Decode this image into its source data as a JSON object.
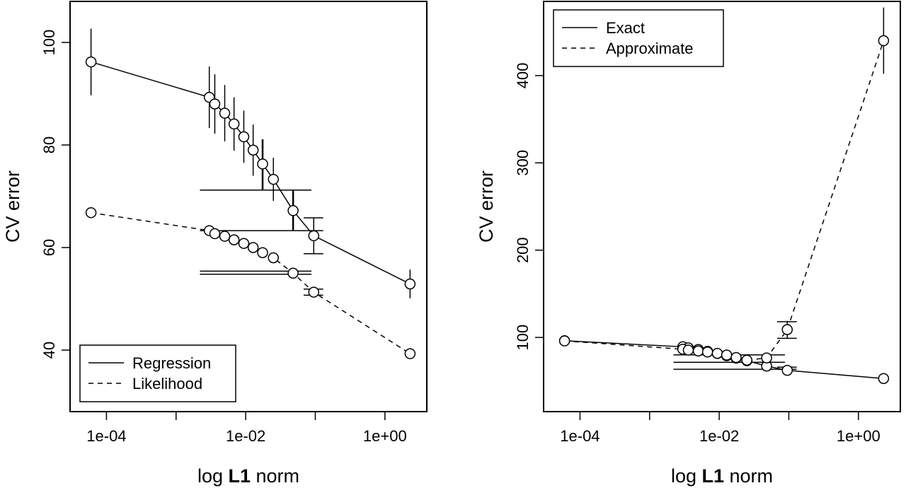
{
  "chart_data": [
    {
      "type": "line",
      "xscale": "log",
      "xlabel_prefix": "log ",
      "xlabel_bold": "L1",
      "xlabel_suffix": " norm",
      "ylabel": "CV error",
      "xlim": [
        3e-05,
        4.0
      ],
      "ylim": [
        28,
        108
      ],
      "xticks": [
        {
          "value": 0.0001,
          "label": "1e-04"
        },
        {
          "value": 0.01,
          "label": "1e-02"
        },
        {
          "value": 1,
          "label": "1e+00"
        }
      ],
      "xminor": [
        0.001,
        0.1
      ],
      "yticks": [
        40,
        60,
        80,
        100
      ],
      "legend": {
        "position": "bottom-left"
      },
      "series": [
        {
          "name": "Regression",
          "dash": "solid",
          "points": [
            {
              "x": 6e-05,
              "y": 96.2,
              "err": 6.5
            },
            {
              "x": 0.003,
              "y": 89.3,
              "err": 6.0
            },
            {
              "x": 0.0036,
              "y": 88.0,
              "err": 5.8
            },
            {
              "x": 0.005,
              "y": 86.2,
              "err": 5.5
            },
            {
              "x": 0.0068,
              "y": 84.1,
              "err": 5.2
            },
            {
              "x": 0.0094,
              "y": 81.6,
              "err": 5.1
            },
            {
              "x": 0.0128,
              "y": 79.0,
              "err": 5.0
            },
            {
              "x": 0.0175,
              "y": 76.3,
              "err": 4.8
            },
            {
              "x": 0.025,
              "y": 73.3,
              "err": 4.2
            },
            {
              "x": 0.048,
              "y": 67.2,
              "err": 4.0
            },
            {
              "x": 0.095,
              "y": 62.3,
              "err": 3.5
            },
            {
              "x": 2.3,
              "y": 52.9,
              "err": 2.8
            }
          ]
        },
        {
          "name": "Likelihood",
          "dash": "dashed",
          "points": [
            {
              "x": 6e-05,
              "y": 66.8,
              "err": 0.6
            },
            {
              "x": 0.003,
              "y": 63.3,
              "err": 0.6
            },
            {
              "x": 0.0036,
              "y": 62.7,
              "err": 0.6
            },
            {
              "x": 0.005,
              "y": 62.2,
              "err": 0.6
            },
            {
              "x": 0.0068,
              "y": 61.5,
              "err": 0.6
            },
            {
              "x": 0.0094,
              "y": 60.8,
              "err": 0.6
            },
            {
              "x": 0.0128,
              "y": 60.0,
              "err": 0.6
            },
            {
              "x": 0.0175,
              "y": 59.0,
              "err": 0.6
            },
            {
              "x": 0.025,
              "y": 58.0,
              "err": 0.6
            },
            {
              "x": 0.048,
              "y": 55.0,
              "err": 0.6
            },
            {
              "x": 0.095,
              "y": 51.3,
              "err": 0.6
            },
            {
              "x": 2.3,
              "y": 39.3,
              "err": 0.6
            }
          ]
        }
      ],
      "hlines": [
        {
          "y": 71.2,
          "x0": 0.0022,
          "x1": 0.088
        },
        {
          "y": 63.3,
          "x0": 0.0022,
          "x1": 0.13
        },
        {
          "y": 65.8,
          "x0": 0.068,
          "x1": 0.13
        },
        {
          "y": 58.8,
          "x0": 0.068,
          "x1": 0.13
        },
        {
          "y": 55.4,
          "x0": 0.0022,
          "x1": 0.088
        },
        {
          "y": 54.8,
          "x0": 0.0022,
          "x1": 0.088
        },
        {
          "y": 51.9,
          "x0": 0.068,
          "x1": 0.13
        },
        {
          "y": 50.7,
          "x0": 0.068,
          "x1": 0.13
        }
      ],
      "vlines": [
        {
          "x": 0.048,
          "y0": 63.3,
          "y1": 71.2
        },
        {
          "x": 0.0175,
          "y0": 71.2,
          "y1": 81.1
        }
      ]
    },
    {
      "type": "line",
      "xscale": "log",
      "xlabel_prefix": "log ",
      "xlabel_bold": "L1",
      "xlabel_suffix": " norm",
      "ylabel": "CV error",
      "xlim": [
        3e-05,
        4.0
      ],
      "ylim": [
        15,
        485
      ],
      "xticks": [
        {
          "value": 0.0001,
          "label": "1e-04"
        },
        {
          "value": 0.01,
          "label": "1e-02"
        },
        {
          "value": 1,
          "label": "1e+00"
        }
      ],
      "xminor": [
        0.001,
        0.1
      ],
      "yticks": [
        100,
        200,
        300,
        400
      ],
      "legend": {
        "position": "top-left"
      },
      "series": [
        {
          "name": "Exact",
          "dash": "solid",
          "points": [
            {
              "x": 6e-05,
              "y": 96.2,
              "err": 5
            },
            {
              "x": 0.003,
              "y": 89.3,
              "err": 5
            },
            {
              "x": 0.0036,
              "y": 88.0,
              "err": 5
            },
            {
              "x": 0.005,
              "y": 86.2,
              "err": 5
            },
            {
              "x": 0.0068,
              "y": 84.1,
              "err": 5
            },
            {
              "x": 0.0094,
              "y": 81.6,
              "err": 5
            },
            {
              "x": 0.0128,
              "y": 79.0,
              "err": 5
            },
            {
              "x": 0.0175,
              "y": 76.3,
              "err": 5
            },
            {
              "x": 0.025,
              "y": 73.3,
              "err": 5
            },
            {
              "x": 0.048,
              "y": 67.2,
              "err": 5
            },
            {
              "x": 0.095,
              "y": 62.3,
              "err": 4
            },
            {
              "x": 2.3,
              "y": 52.9,
              "err": 3
            }
          ]
        },
        {
          "name": "Approximate",
          "dash": "dashed",
          "points": [
            {
              "x": 6e-05,
              "y": 96.0,
              "err": 4
            },
            {
              "x": 0.003,
              "y": 86.5,
              "err": 5
            },
            {
              "x": 0.0036,
              "y": 85.5,
              "err": 5
            },
            {
              "x": 0.005,
              "y": 84.5,
              "err": 5
            },
            {
              "x": 0.0068,
              "y": 83.3,
              "err": 5
            },
            {
              "x": 0.0094,
              "y": 81.8,
              "err": 5
            },
            {
              "x": 0.0128,
              "y": 79.8,
              "err": 5
            },
            {
              "x": 0.0175,
              "y": 77.0,
              "err": 5
            },
            {
              "x": 0.025,
              "y": 74.0,
              "err": 5
            },
            {
              "x": 0.048,
              "y": 76.5,
              "err": 5
            },
            {
              "x": 0.095,
              "y": 109.0,
              "err": 10
            },
            {
              "x": 2.3,
              "y": 440.0,
              "err": 38
            }
          ]
        }
      ],
      "hlines": [
        {
          "y": 80.0,
          "x0": 0.0022,
          "x1": 0.088
        },
        {
          "y": 71.5,
          "x0": 0.0022,
          "x1": 0.088
        },
        {
          "y": 63.5,
          "x0": 0.0022,
          "x1": 0.13
        },
        {
          "y": 118.0,
          "x0": 0.068,
          "x1": 0.13
        },
        {
          "y": 99.0,
          "x0": 0.068,
          "x1": 0.13
        },
        {
          "y": 66.0,
          "x0": 0.068,
          "x1": 0.13
        }
      ],
      "vlines": []
    }
  ]
}
